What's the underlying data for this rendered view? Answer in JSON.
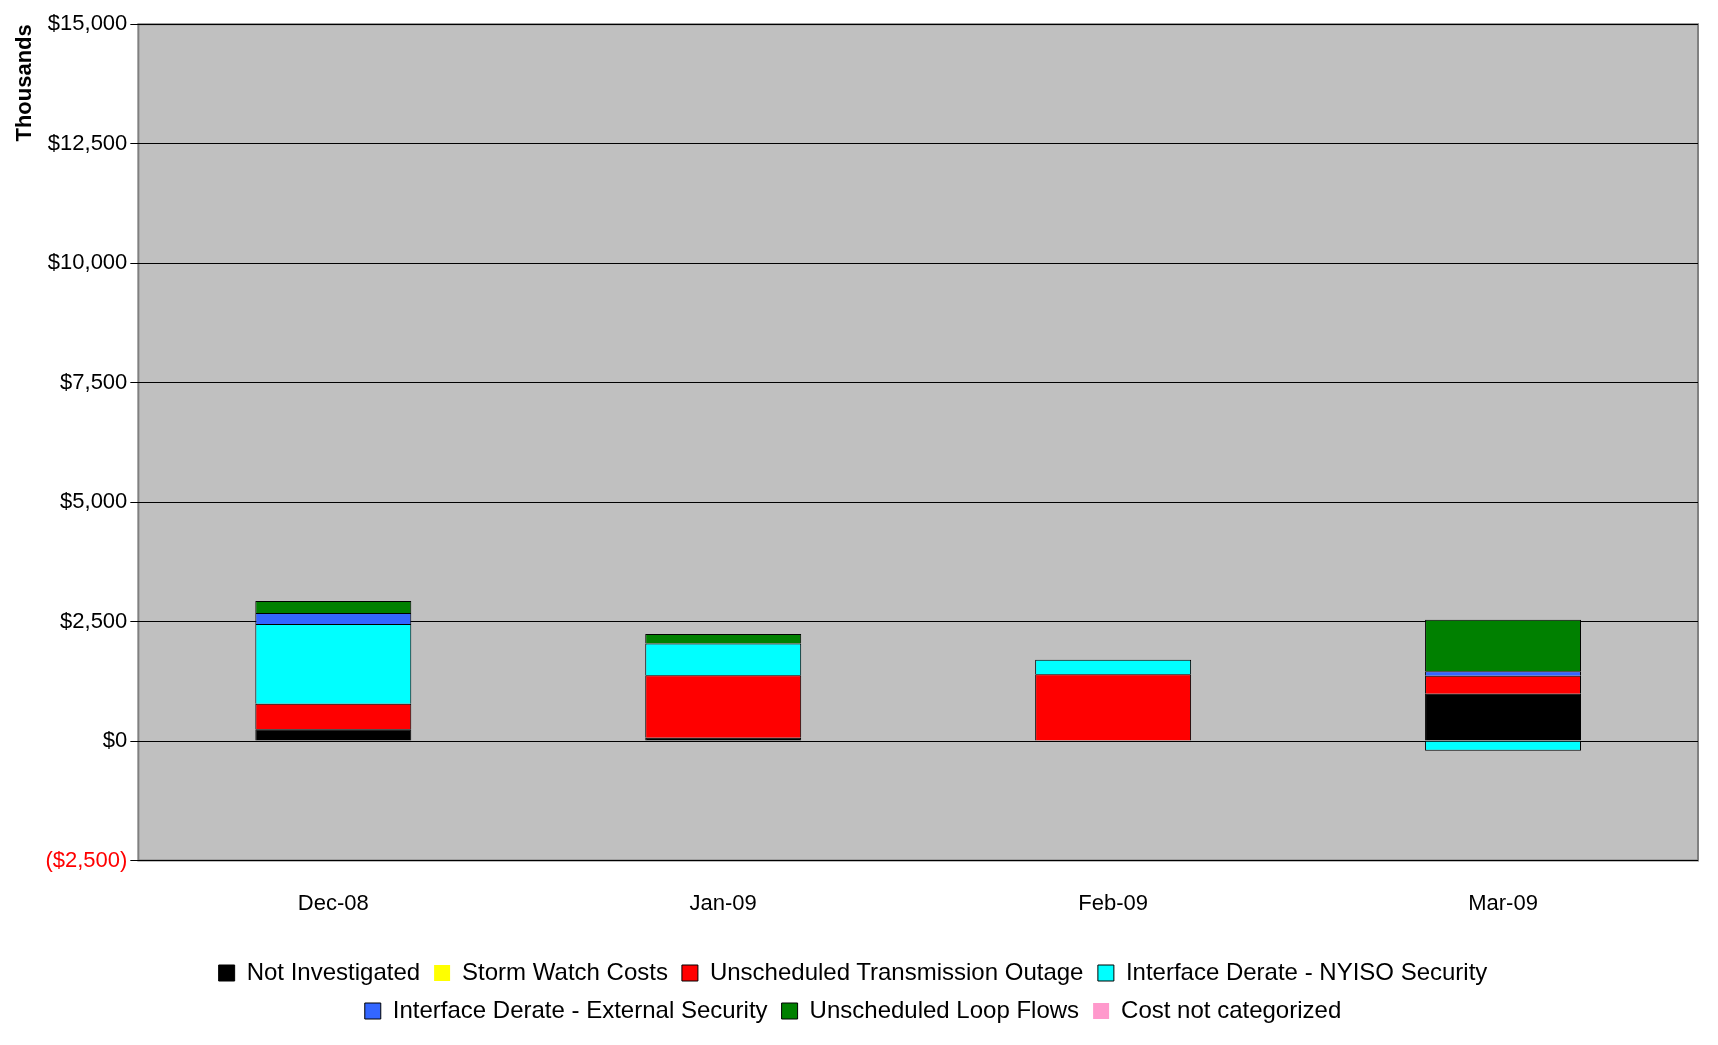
{
  "chart_data": {
    "type": "bar",
    "ylabel": "Thousands",
    "categories": [
      "Dec-08",
      "Jan-09",
      "Feb-09",
      "Mar-09"
    ],
    "stacked": true,
    "grid": "y",
    "legend": "bottom",
    "ylim": [
      -2500,
      15000
    ],
    "yticks": [
      {
        "value": -2500,
        "label": "($2,500)"
      },
      {
        "value": 0,
        "label": "$0"
      },
      {
        "value": 2500,
        "label": "$2,500"
      },
      {
        "value": 5000,
        "label": "$5,000"
      },
      {
        "value": 7500,
        "label": "$7,500"
      },
      {
        "value": 10000,
        "label": "$10,000"
      },
      {
        "value": 12500,
        "label": "$12,500"
      },
      {
        "value": 15000,
        "label": "$15,000"
      }
    ],
    "series": [
      {
        "name": "Not Investigated",
        "color": "#000000",
        "values": [
          250,
          70,
          0,
          990
        ]
      },
      {
        "name": "Storm Watch Costs",
        "color": "#ffff00",
        "values": [
          0,
          0,
          0,
          0
        ]
      },
      {
        "name": "Unscheduled Transmission Outage",
        "color": "#ff0000",
        "values": [
          530,
          1310,
          1400,
          380
        ]
      },
      {
        "name": "Interface Derate - NYISO Security",
        "color": "#00ffff",
        "values": [
          1670,
          660,
          300,
          -200
        ]
      },
      {
        "name": "Interface Derate - External Security",
        "color": "#3366ff",
        "values": [
          230,
          0,
          0,
          90
        ]
      },
      {
        "name": "Unscheduled Loop Flows",
        "color": "#008000",
        "values": [
          250,
          200,
          0,
          1080
        ]
      },
      {
        "name": "Cost not categorized",
        "color": "#ff99cc",
        "values": [
          0,
          0,
          0,
          0
        ]
      }
    ]
  }
}
